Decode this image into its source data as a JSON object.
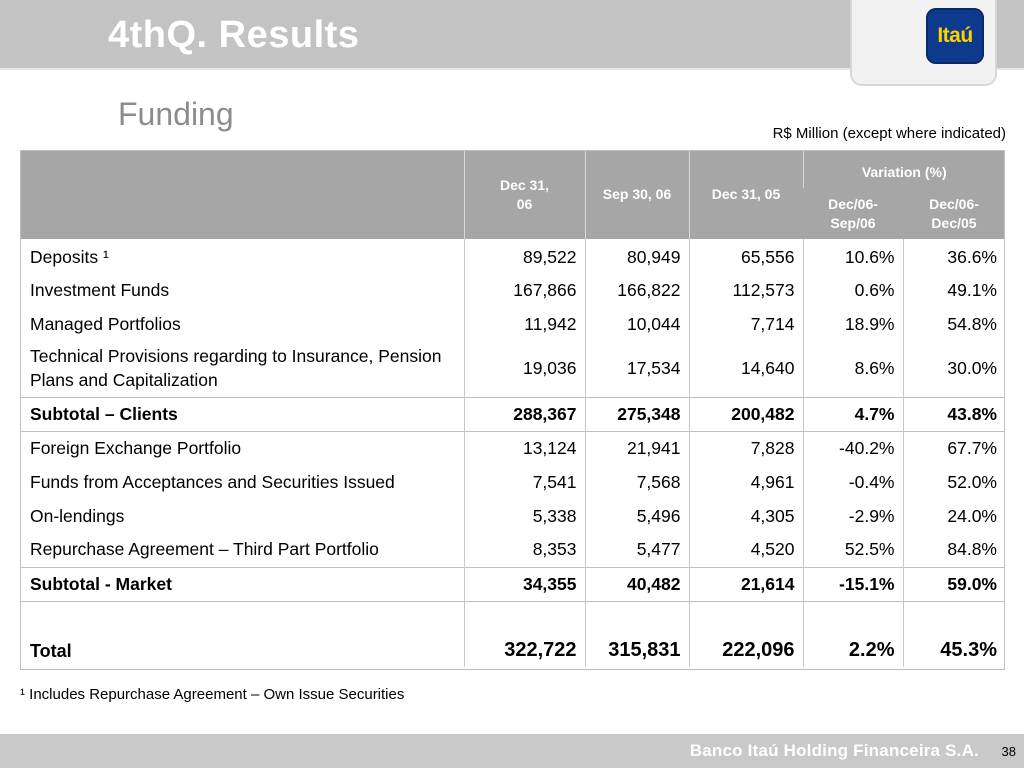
{
  "header": {
    "title": "4thQ. Results",
    "logo_text": "Itaú"
  },
  "subtitle": "Funding",
  "unit_note": "R$ Million (except where indicated)",
  "table": {
    "columns": {
      "dec31_06": "Dec 31, 06",
      "sep30_06": "Sep 30, 06",
      "dec31_05": "Dec 31, 05",
      "variation": "Variation (%)",
      "var_dec06_sep06": "Dec/06- Sep/06",
      "var_dec06_dec05": "Dec/06- Dec/05"
    },
    "rows": [
      {
        "label": "Deposits ¹",
        "v1": "89,522",
        "v2": "80,949",
        "v3": "65,556",
        "p1": "10.6%",
        "p2": "36.6%"
      },
      {
        "label": "Investment Funds",
        "v1": "167,866",
        "v2": "166,822",
        "v3": "112,573",
        "p1": "0.6%",
        "p2": "49.1%"
      },
      {
        "label": "Managed Portfolios",
        "v1": "11,942",
        "v2": "10,044",
        "v3": "7,714",
        "p1": "18.9%",
        "p2": "54.8%"
      },
      {
        "label": "Technical Provisions regarding to Insurance, Pension Plans and Capitalization",
        "v1": "19,036",
        "v2": "17,534",
        "v3": "14,640",
        "p1": "8.6%",
        "p2": "30.0%"
      },
      {
        "label": "Subtotal – Clients",
        "v1": "288,367",
        "v2": "275,348",
        "v3": "200,482",
        "p1": "4.7%",
        "p2": "43.8%"
      },
      {
        "label": "Foreign Exchange Portfolio",
        "v1": "13,124",
        "v2": "21,941",
        "v3": "7,828",
        "p1": "-40.2%",
        "p2": "67.7%"
      },
      {
        "label": "Funds from Acceptances and Securities Issued",
        "v1": "7,541",
        "v2": "7,568",
        "v3": "4,961",
        "p1": "-0.4%",
        "p2": "52.0%"
      },
      {
        "label": "On-lendings",
        "v1": "5,338",
        "v2": "5,496",
        "v3": "4,305",
        "p1": "-2.9%",
        "p2": "24.0%"
      },
      {
        "label": "Repurchase Agreement – Third Part Portfolio",
        "v1": "8,353",
        "v2": "5,477",
        "v3": "4,520",
        "p1": "52.5%",
        "p2": "84.8%"
      },
      {
        "label": "Subtotal - Market",
        "v1": "34,355",
        "v2": "40,482",
        "v3": "21,614",
        "p1": "-15.1%",
        "p2": "59.0%"
      },
      {
        "label": "Total",
        "v1": "322,722",
        "v2": "315,831",
        "v3": "222,096",
        "p1": "2.2%",
        "p2": "45.3%"
      }
    ]
  },
  "footnote": "¹ Includes Repurchase Agreement – Own Issue Securities",
  "footer": {
    "company": "Banco Itaú Holding Financeira S.A.",
    "page_number": "38"
  }
}
